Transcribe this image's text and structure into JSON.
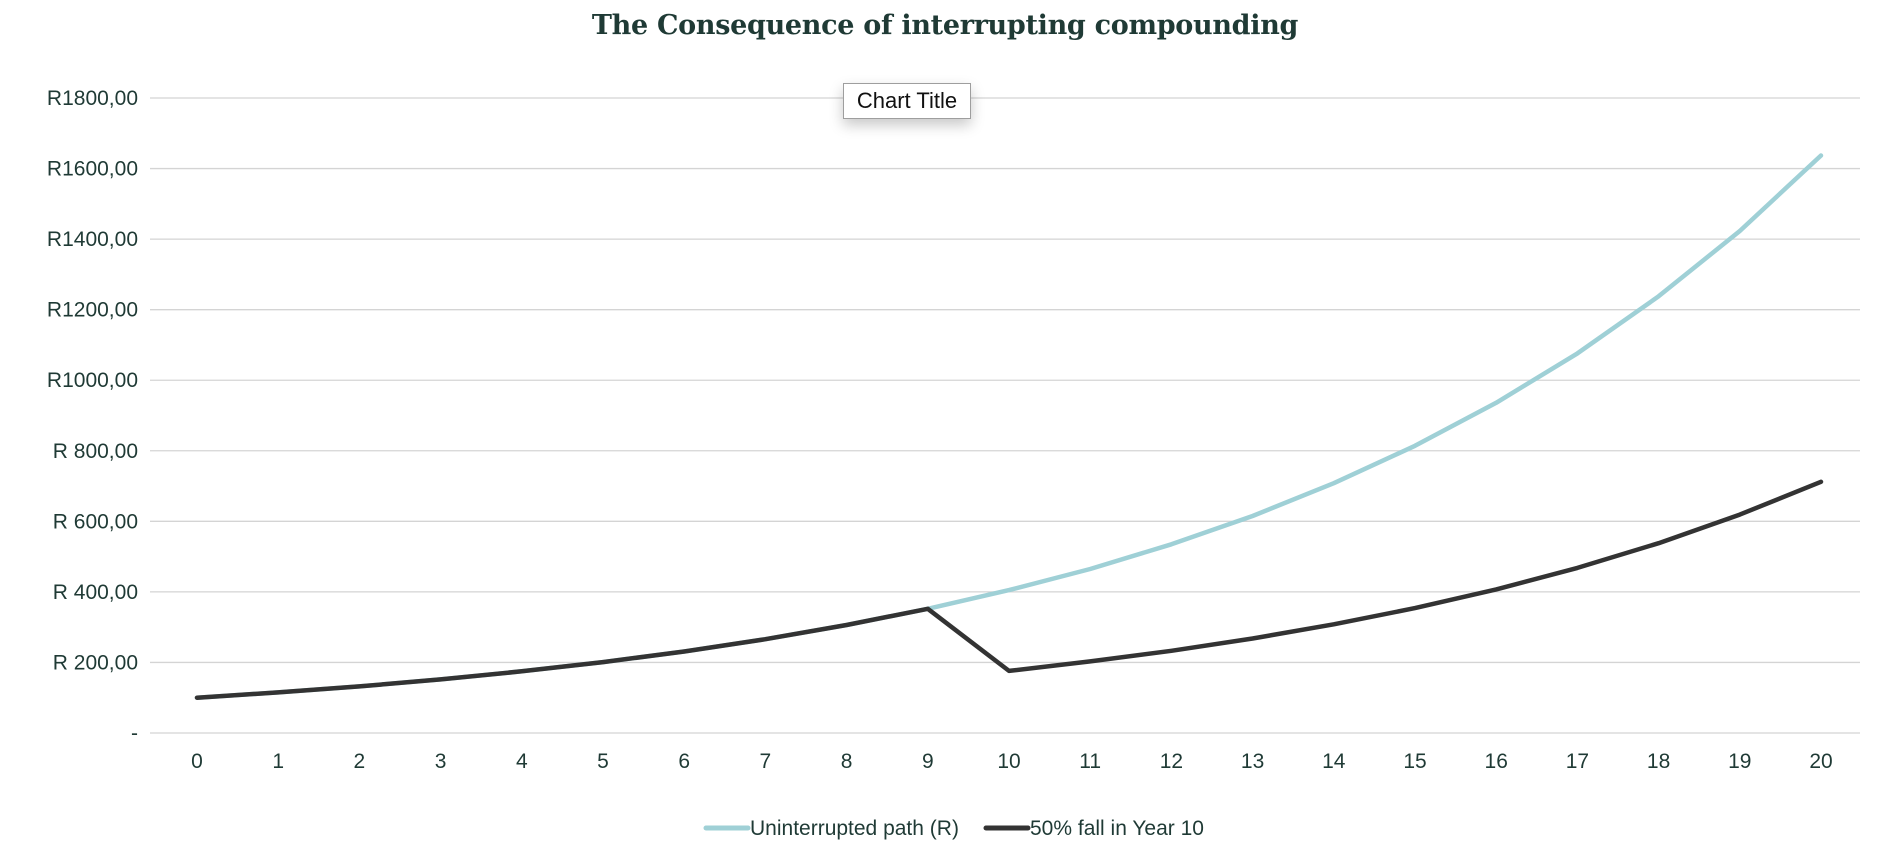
{
  "chart_data": {
    "type": "line",
    "title": "The Consequence of interrupting compounding",
    "floating_label": "Chart Title",
    "x": [
      0,
      1,
      2,
      3,
      4,
      5,
      6,
      7,
      8,
      9,
      10,
      11,
      12,
      13,
      14,
      15,
      16,
      17,
      18,
      19,
      20
    ],
    "x_tick_labels": [
      "0",
      "1",
      "2",
      "3",
      "4",
      "5",
      "6",
      "7",
      "8",
      "9",
      "10",
      "11",
      "12",
      "13",
      "14",
      "15",
      "16",
      "17",
      "18",
      "19",
      "20"
    ],
    "y_ticks": [
      0,
      200,
      400,
      600,
      800,
      1000,
      1200,
      1400,
      1600,
      1800
    ],
    "y_tick_labels": [
      "-",
      "R 200,00",
      "R 400,00",
      "R 600,00",
      "R 800,00",
      "R1000,00",
      "R1200,00",
      "R1400,00",
      "R1600,00",
      "R1800,00"
    ],
    "ylim": [
      0,
      1800
    ],
    "grid": true,
    "legend_position": "bottom",
    "series": [
      {
        "name": "Uninterrupted path (R)",
        "color": "#9fd0d6",
        "values": [
          100,
          115,
          132,
          152,
          175,
          201,
          231,
          266,
          306,
          352,
          405,
          465,
          535,
          615,
          708,
          814,
          936,
          1076,
          1238,
          1423,
          1637
        ]
      },
      {
        "name": "50% fall in Year 10",
        "color": "#333333",
        "values": [
          100,
          115,
          132,
          152,
          175,
          201,
          231,
          266,
          306,
          352,
          176,
          203,
          233,
          268,
          308,
          354,
          407,
          468,
          538,
          619,
          712
        ]
      }
    ],
    "gridline_color": "#d4d4d4",
    "axis_text_color": "#1f3a35"
  }
}
